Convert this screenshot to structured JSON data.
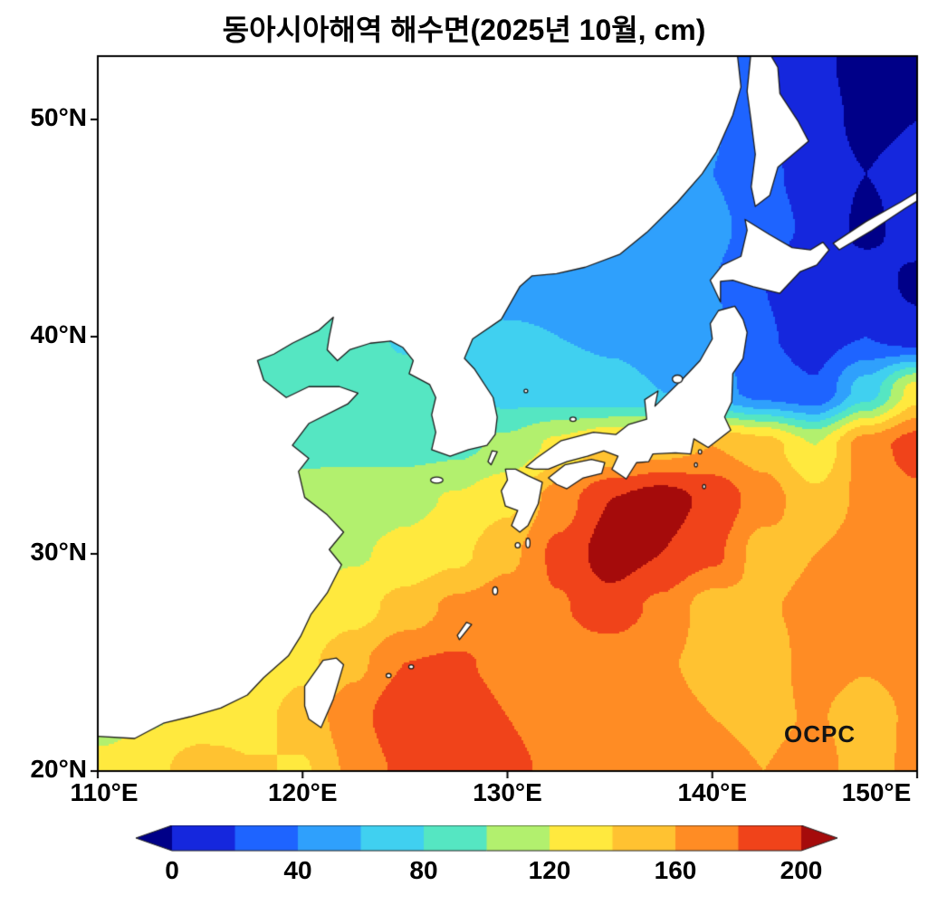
{
  "chart_data": {
    "type": "heatmap",
    "title": "동아시아해역 해수면(2025년 10월, cm)",
    "units": "cm",
    "watermark": "OCPC",
    "axes": {
      "x": {
        "range": [
          110,
          150
        ],
        "ticks": [
          110,
          120,
          130,
          140,
          150
        ],
        "tick_labels": [
          "110°E",
          "120°E",
          "130°E",
          "140°E",
          "150°E"
        ]
      },
      "y": {
        "range": [
          20,
          52.92
        ],
        "ticks": [
          50,
          40,
          30,
          20
        ],
        "tick_labels": [
          "50°N",
          "40°N",
          "30°N",
          "20°N"
        ]
      }
    },
    "colorbar": {
      "extend": "both",
      "levels": [
        0,
        20,
        40,
        60,
        80,
        100,
        120,
        140,
        160,
        180,
        200
      ],
      "colors": [
        "#000088",
        "#1527dd",
        "#1e64ff",
        "#2fa0fc",
        "#40d0f0",
        "#55e6c2",
        "#b2f06e",
        "#ffe93e",
        "#ffc231",
        "#ff8c24",
        "#f0431a",
        "#a50b0b"
      ],
      "tick_labels": [
        "0",
        "40",
        "80",
        "120",
        "160",
        "200"
      ],
      "tick_level_indices": [
        0,
        2,
        4,
        6,
        8,
        10
      ]
    },
    "grid": {
      "lon_step": 2.5,
      "lat_step": 2.5,
      "lons": [
        110,
        112.5,
        115,
        117.5,
        120,
        122.5,
        125,
        127.5,
        130,
        132.5,
        135,
        137.5,
        140,
        142.5,
        145,
        147.5,
        150
      ],
      "lats": [
        52.5,
        50,
        47.5,
        45,
        42.5,
        40,
        37.5,
        35,
        32.5,
        30,
        27.5,
        25,
        22.5,
        20
      ],
      "values": [
        [
          55,
          55,
          55,
          52,
          50,
          46,
          42,
          35,
          30,
          28,
          32,
          38,
          40,
          20,
          5,
          -8,
          -5
        ],
        [
          56,
          56,
          55,
          52,
          50,
          47,
          43,
          38,
          34,
          33,
          36,
          40,
          42,
          22,
          8,
          -5,
          0
        ],
        [
          58,
          58,
          56,
          54,
          52,
          49,
          46,
          42,
          40,
          40,
          42,
          44,
          40,
          25,
          10,
          0,
          8
        ],
        [
          60,
          60,
          58,
          56,
          54,
          52,
          50,
          48,
          47,
          48,
          50,
          52,
          45,
          30,
          15,
          -5,
          10
        ],
        [
          62,
          62,
          60,
          58,
          57,
          56,
          55,
          54,
          53,
          54,
          55,
          52,
          40,
          20,
          0,
          10,
          -5
        ],
        [
          78,
          80,
          84,
          88,
          90,
          86,
          78,
          72,
          62,
          60,
          58,
          55,
          45,
          22,
          12,
          20,
          8
        ],
        [
          82,
          85,
          88,
          90,
          92,
          90,
          86,
          80,
          72,
          68,
          64,
          60,
          50,
          30,
          22,
          70,
          130
        ],
        [
          86,
          90,
          92,
          94,
          96,
          95,
          92,
          95,
          105,
          125,
          140,
          150,
          160,
          150,
          120,
          170,
          190
        ],
        [
          96,
          98,
          100,
          103,
          106,
          110,
          115,
          122,
          135,
          170,
          200,
          210,
          195,
          170,
          145,
          165,
          175
        ],
        [
          100,
          103,
          106,
          110,
          113,
          118,
          125,
          135,
          155,
          185,
          210,
          200,
          185,
          150,
          160,
          170,
          178
        ],
        [
          104,
          108,
          112,
          116,
          122,
          132,
          148,
          165,
          172,
          178,
          192,
          175,
          150,
          158,
          165,
          172,
          168
        ],
        [
          108,
          113,
          118,
          124,
          135,
          155,
          180,
          182,
          176,
          170,
          166,
          162,
          155,
          150,
          168,
          162,
          170
        ],
        [
          112,
          118,
          124,
          132,
          148,
          172,
          198,
          188,
          180,
          176,
          172,
          166,
          160,
          155,
          162,
          150,
          165
        ],
        [
          126,
          132,
          155,
          142,
          138,
          165,
          185,
          188,
          182,
          178,
          172,
          170,
          168,
          160,
          170,
          148,
          168
        ]
      ]
    },
    "land": {
      "fill": "#ffffff",
      "stroke": "#1b1b1b",
      "polygons": {
        "mainland_asia_korea": [
          [
            110,
            21.6
          ],
          [
            111.8,
            21.5
          ],
          [
            113.2,
            22.2
          ],
          [
            114.5,
            22.5
          ],
          [
            116,
            22.9
          ],
          [
            117.3,
            23.5
          ],
          [
            118.1,
            24.3
          ],
          [
            119.3,
            25.3
          ],
          [
            119.9,
            26.2
          ],
          [
            120.4,
            27.2
          ],
          [
            121.2,
            28.2
          ],
          [
            121.9,
            29.5
          ],
          [
            121.3,
            30.2
          ],
          [
            122,
            31
          ],
          [
            121.2,
            31.8
          ],
          [
            120.1,
            32.6
          ],
          [
            119.8,
            33.8
          ],
          [
            120.3,
            34.4
          ],
          [
            119.5,
            35
          ],
          [
            120.3,
            36
          ],
          [
            122.2,
            36.9
          ],
          [
            122.7,
            37.4
          ],
          [
            121.8,
            37.7
          ],
          [
            120.3,
            37.7
          ],
          [
            119.2,
            37.2
          ],
          [
            118.1,
            38
          ],
          [
            117.8,
            38.9
          ],
          [
            118.6,
            39.2
          ],
          [
            119.5,
            39.7
          ],
          [
            120.8,
            40.3
          ],
          [
            121.5,
            40.9
          ],
          [
            121.3,
            40
          ],
          [
            121.2,
            39.4
          ],
          [
            121.7,
            38.9
          ],
          [
            122.3,
            39.4
          ],
          [
            123.3,
            39.7
          ],
          [
            124.3,
            39.8
          ],
          [
            124.9,
            39.5
          ],
          [
            125.4,
            38.9
          ],
          [
            125.2,
            38.3
          ],
          [
            126.2,
            37.8
          ],
          [
            126.5,
            37.2
          ],
          [
            126.3,
            36.4
          ],
          [
            126.5,
            35.6
          ],
          [
            126.3,
            34.8
          ],
          [
            127.2,
            34.5
          ],
          [
            128.1,
            34.8
          ],
          [
            129,
            35
          ],
          [
            129.4,
            35.5
          ],
          [
            129.5,
            36.3
          ],
          [
            129.3,
            37.2
          ],
          [
            128.4,
            38.5
          ],
          [
            127.9,
            39
          ],
          [
            128.3,
            39.9
          ],
          [
            129.7,
            40.8
          ],
          [
            130.6,
            42.3
          ],
          [
            131.2,
            42.8
          ],
          [
            132.4,
            42.9
          ],
          [
            133.8,
            43.2
          ],
          [
            135.5,
            43.8
          ],
          [
            136.8,
            44.8
          ],
          [
            138.3,
            46.2
          ],
          [
            139.5,
            47.5
          ],
          [
            140.2,
            48.5
          ],
          [
            141,
            50.2
          ],
          [
            141.4,
            51.5
          ],
          [
            141.2,
            53.2
          ],
          [
            109.8,
            53.2
          ],
          [
            109.8,
            21.6
          ]
        ],
        "sakhalin": [
          [
            141.9,
            53.2
          ],
          [
            141.7,
            51.3
          ],
          [
            141.9,
            49.9
          ],
          [
            142.1,
            48.4
          ],
          [
            141.9,
            46.9
          ],
          [
            142.1,
            46
          ],
          [
            142.8,
            46.5
          ],
          [
            143.2,
            47.8
          ],
          [
            144.7,
            49
          ],
          [
            144.2,
            49.9
          ],
          [
            143.3,
            51.2
          ],
          [
            143.2,
            52.4
          ],
          [
            142.7,
            53.2
          ]
        ],
        "hokkaido": [
          [
            140.4,
            41.6
          ],
          [
            139.9,
            42.6
          ],
          [
            140.5,
            43.3
          ],
          [
            141.4,
            43.7
          ],
          [
            141.7,
            44.9
          ],
          [
            141.6,
            45.4
          ],
          [
            142.8,
            44.7
          ],
          [
            143.9,
            44.1
          ],
          [
            144.8,
            44
          ],
          [
            145.4,
            44.35
          ],
          [
            145.7,
            44
          ],
          [
            145.1,
            43.3
          ],
          [
            144.3,
            43
          ],
          [
            143.3,
            42
          ],
          [
            142,
            42.3
          ],
          [
            141,
            42.6
          ],
          [
            140.4,
            42.55
          ]
        ],
        "honshu": [
          [
            130.9,
            34
          ],
          [
            131.4,
            34.4
          ],
          [
            132.6,
            35.2
          ],
          [
            134.2,
            35.6
          ],
          [
            135.3,
            35.5
          ],
          [
            135.9,
            35.95
          ],
          [
            136.8,
            36.2
          ],
          [
            136.7,
            37.1
          ],
          [
            137.35,
            37.5
          ],
          [
            137.2,
            36.8
          ],
          [
            138.5,
            38
          ],
          [
            139.4,
            38.9
          ],
          [
            140,
            39.9
          ],
          [
            139.9,
            40.6
          ],
          [
            140.3,
            41.2
          ],
          [
            141.1,
            41.4
          ],
          [
            141.5,
            40.8
          ],
          [
            141.7,
            40.2
          ],
          [
            141.5,
            39
          ],
          [
            141,
            38.3
          ],
          [
            140.95,
            37
          ],
          [
            140.6,
            36.3
          ],
          [
            140.9,
            35.7
          ],
          [
            139.8,
            34.9
          ],
          [
            139.1,
            35.3
          ],
          [
            138.95,
            34.6
          ],
          [
            138.2,
            34.65
          ],
          [
            137.1,
            34.6
          ],
          [
            136.9,
            34.25
          ],
          [
            136.3,
            34.2
          ],
          [
            135.8,
            33.45
          ],
          [
            135.1,
            33.9
          ],
          [
            135.4,
            34.5
          ],
          [
            134.7,
            34.75
          ],
          [
            133.9,
            34.5
          ],
          [
            132.9,
            34.25
          ],
          [
            132,
            33.9
          ],
          [
            131.3,
            33.9
          ]
        ],
        "kyushu": [
          [
            130.4,
            33.9
          ],
          [
            131,
            33.6
          ],
          [
            131.7,
            33.3
          ],
          [
            131.5,
            32.3
          ],
          [
            131,
            31.3
          ],
          [
            130.6,
            31
          ],
          [
            130.2,
            31.3
          ],
          [
            130.5,
            32
          ],
          [
            129.9,
            32.2
          ],
          [
            129.7,
            32.9
          ],
          [
            130,
            33.4
          ],
          [
            129.9,
            33.9
          ]
        ],
        "shikoku": [
          [
            132.4,
            33.2
          ],
          [
            132,
            33.5
          ],
          [
            132.8,
            34.1
          ],
          [
            134.1,
            34.35
          ],
          [
            134.75,
            34.2
          ],
          [
            134.6,
            33.7
          ],
          [
            133.7,
            33.5
          ],
          [
            132.9,
            33
          ]
        ],
        "taiwan": [
          [
            120.1,
            23
          ],
          [
            120.1,
            23.9
          ],
          [
            121,
            25.1
          ],
          [
            121.65,
            25.2
          ],
          [
            122,
            24.9
          ],
          [
            121.5,
            23.3
          ],
          [
            120.9,
            22
          ],
          [
            120.3,
            22.4
          ]
        ],
        "kuril_islands": [
          [
            145.9,
            44.3
          ],
          [
            147.5,
            45.3
          ],
          [
            149.2,
            46.2
          ],
          [
            150.6,
            47
          ],
          [
            150.6,
            46.6
          ],
          [
            149.4,
            45.9
          ],
          [
            147.8,
            44.9
          ],
          [
            146.2,
            44
          ]
        ],
        "okinawa": [
          [
            127.65,
            26.05
          ],
          [
            128.25,
            26.75
          ],
          [
            128,
            26.85
          ],
          [
            127.55,
            26.25
          ]
        ],
        "tsushima": [
          [
            129.2,
            34.1
          ],
          [
            129.5,
            34.7
          ],
          [
            129.25,
            34.75
          ],
          [
            129.05,
            34.25
          ]
        ]
      },
      "island_dots": [
        [
          126.55,
          33.4,
          0.3,
          0.14
        ],
        [
          138.3,
          38.05,
          0.25,
          0.18
        ],
        [
          133.2,
          36.2,
          0.15,
          0.1
        ],
        [
          129.4,
          28.3,
          0.12,
          0.18
        ],
        [
          131,
          30.5,
          0.1,
          0.22
        ],
        [
          130.5,
          30.4,
          0.12,
          0.12
        ],
        [
          125.3,
          24.8,
          0.12,
          0.09
        ],
        [
          124.2,
          24.4,
          0.12,
          0.09
        ],
        [
          139.4,
          34.7,
          0.08,
          0.1
        ],
        [
          139.2,
          34.1,
          0.07,
          0.09
        ],
        [
          139.6,
          33.1,
          0.07,
          0.09
        ],
        [
          130.9,
          37.5,
          0.09,
          0.08
        ]
      ]
    }
  }
}
